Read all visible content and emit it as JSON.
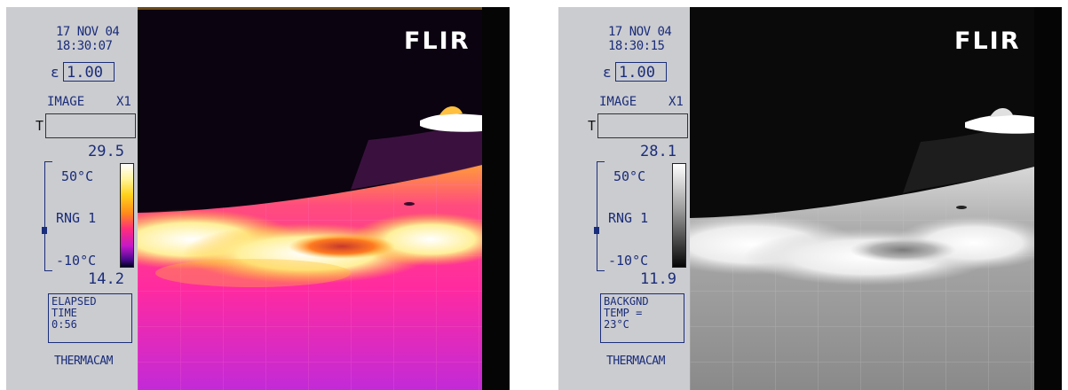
{
  "screens": [
    {
      "id": "screen-color",
      "date": "17 NOV 04",
      "time": "18:30:07",
      "emissivity_symbol": "ε",
      "emissivity": "1.00",
      "image_label": "IMAGE",
      "zoom": "X1",
      "t_label": "T",
      "scale_top": "29.5",
      "scale_bottom": "14.2",
      "range_high": "50°C",
      "range_name": "RNG 1",
      "range_low": "-10°C",
      "info_lines": [
        "ELAPSED",
        "TIME",
        "0:56"
      ],
      "brand": "THERMACAM",
      "logo": "FLIR",
      "palette": "ironbow"
    },
    {
      "id": "screen-gray",
      "date": "17 NOV 04",
      "time": "18:30:15",
      "emissivity_symbol": "ε",
      "emissivity": "1.00",
      "image_label": "IMAGE",
      "zoom": "X1",
      "t_label": "T",
      "scale_top": "28.1",
      "scale_bottom": "11.9",
      "range_high": "50°C",
      "range_name": "RNG 1",
      "range_low": "-10°C",
      "info_lines": [
        "BACKGND",
        "TEMP =",
        "23°C"
      ],
      "brand": "THERMACAM",
      "logo": "FLIR",
      "palette": "grayscale"
    }
  ],
  "colors": {
    "panel_bg": "#cbccd0",
    "panel_text": "#1a2d7a"
  }
}
